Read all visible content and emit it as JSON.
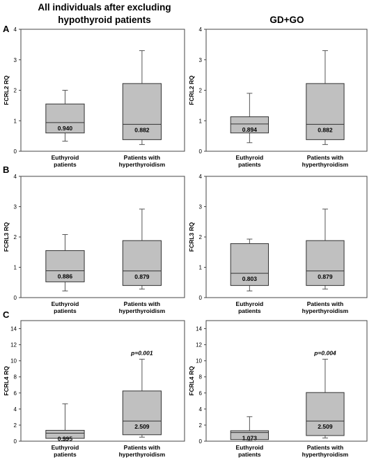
{
  "titles": {
    "left_line1": "All individuals after excluding",
    "left_line2": "hypothyroid patients",
    "right": "GD+GO"
  },
  "panel_letters": [
    "A",
    "B",
    "C"
  ],
  "chart_data": [
    {
      "id": "A-left",
      "type": "box",
      "ylabel": "FCRL2 RQ",
      "ylim": [
        0,
        4
      ],
      "yticks": [
        "0",
        "1",
        "2",
        "3",
        "4"
      ],
      "categories": [
        [
          "Euthyroid",
          "patients"
        ],
        [
          "Patients with",
          "hyperthyroidism"
        ]
      ],
      "boxes": [
        {
          "min": 0.33,
          "q1": 0.6,
          "median": 0.94,
          "q3": 1.55,
          "max": 2.0,
          "label": "0.940"
        },
        {
          "min": 0.22,
          "q1": 0.38,
          "median": 0.882,
          "q3": 2.22,
          "max": 3.3,
          "label": "0.882"
        }
      ]
    },
    {
      "id": "A-right",
      "type": "box",
      "ylabel": "FCRL2 RQ",
      "ylim": [
        0,
        4
      ],
      "yticks": [
        "0",
        "1",
        "2",
        "3",
        "4"
      ],
      "categories": [
        [
          "Euthyroid",
          "patients"
        ],
        [
          "Patients with",
          "hyperthyroidism"
        ]
      ],
      "boxes": [
        {
          "min": 0.28,
          "q1": 0.6,
          "median": 0.894,
          "q3": 1.13,
          "max": 1.9,
          "label": "0.894"
        },
        {
          "min": 0.22,
          "q1": 0.38,
          "median": 0.882,
          "q3": 2.22,
          "max": 3.3,
          "label": "0.882"
        }
      ]
    },
    {
      "id": "B-left",
      "type": "box",
      "ylabel": "FCRL3 RQ",
      "ylim": [
        0,
        4
      ],
      "yticks": [
        "0",
        "1",
        "2",
        "3",
        "4"
      ],
      "categories": [
        [
          "Euthyroid",
          "patients"
        ],
        [
          "Patients with",
          "hyperthyroidism"
        ]
      ],
      "boxes": [
        {
          "min": 0.22,
          "q1": 0.52,
          "median": 0.886,
          "q3": 1.55,
          "max": 2.08,
          "label": "0.886"
        },
        {
          "min": 0.28,
          "q1": 0.4,
          "median": 0.879,
          "q3": 1.88,
          "max": 2.92,
          "label": "0.879"
        }
      ]
    },
    {
      "id": "B-right",
      "type": "box",
      "ylabel": "FCRL3 RQ",
      "ylim": [
        0,
        4
      ],
      "yticks": [
        "0",
        "1",
        "2",
        "3",
        "4"
      ],
      "categories": [
        [
          "Euthyroid",
          "patients"
        ],
        [
          "Patients with",
          "hyperthyroidism"
        ]
      ],
      "boxes": [
        {
          "min": 0.22,
          "q1": 0.4,
          "median": 0.803,
          "q3": 1.78,
          "max": 1.93,
          "label": "0.803"
        },
        {
          "min": 0.28,
          "q1": 0.4,
          "median": 0.879,
          "q3": 1.88,
          "max": 2.92,
          "label": "0.879"
        }
      ]
    },
    {
      "id": "C-left",
      "type": "box",
      "ylabel": "FCRL4 RQ",
      "ylim": [
        0,
        15
      ],
      "yticks": [
        "0",
        "2",
        "4",
        "6",
        "8",
        "10",
        "12",
        "14"
      ],
      "categories": [
        [
          "Euthyroid",
          "patients"
        ],
        [
          "Patients with",
          "hyperthyroidism"
        ]
      ],
      "pvalue": "p=0.001",
      "boxes": [
        {
          "min": 0.1,
          "q1": 0.35,
          "median": 0.995,
          "q3": 1.35,
          "max": 4.65,
          "label": "0.995"
        },
        {
          "min": 0.5,
          "q1": 0.8,
          "median": 2.509,
          "q3": 6.25,
          "max": 10.2,
          "label": "2.509"
        }
      ]
    },
    {
      "id": "C-right",
      "type": "box",
      "ylabel": "FCRL4 RQ",
      "ylim": [
        0,
        15
      ],
      "yticks": [
        "0",
        "2",
        "4",
        "6",
        "8",
        "10",
        "12",
        "14"
      ],
      "categories": [
        [
          "Euthyroid",
          "patients"
        ],
        [
          "Patients with",
          "hyperthyroidism"
        ]
      ],
      "pvalue": "p=0.004",
      "boxes": [
        {
          "min": 0.05,
          "q1": 0.2,
          "median": 1.073,
          "q3": 1.3,
          "max": 3.05,
          "label": "1.073"
        },
        {
          "min": 0.4,
          "q1": 0.7,
          "median": 2.509,
          "q3": 6.05,
          "max": 10.2,
          "label": "2.509"
        }
      ]
    }
  ],
  "colors": {
    "box_fill": "#c0c0c0",
    "frame": "#444444"
  }
}
